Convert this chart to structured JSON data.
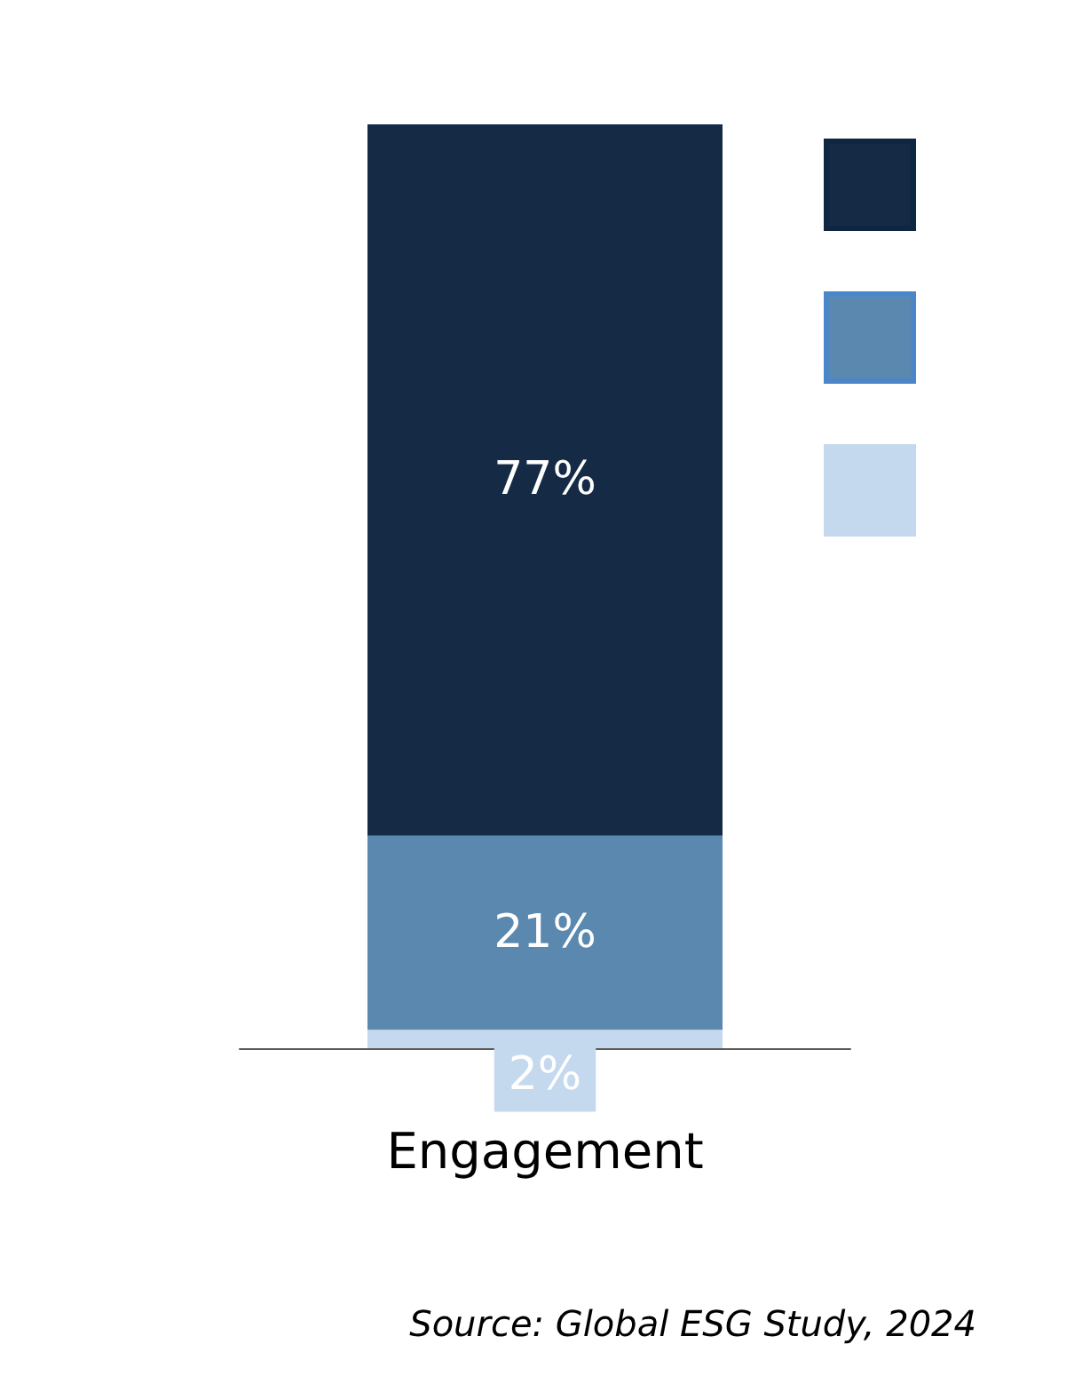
{
  "chart_data": {
    "type": "bar",
    "stacked": true,
    "categories": [
      "Engagement"
    ],
    "series": [
      {
        "color": "#c5d9ee",
        "values": [
          2
        ],
        "value_labels": [
          "2%"
        ]
      },
      {
        "color": "#5b88ae",
        "values": [
          21
        ],
        "value_labels": [
          "21%"
        ]
      },
      {
        "color": "#152b45",
        "values": [
          77
        ],
        "value_labels": [
          "77%"
        ]
      }
    ],
    "annotations": [
      "Source: Global ESG Study, 2024"
    ]
  }
}
